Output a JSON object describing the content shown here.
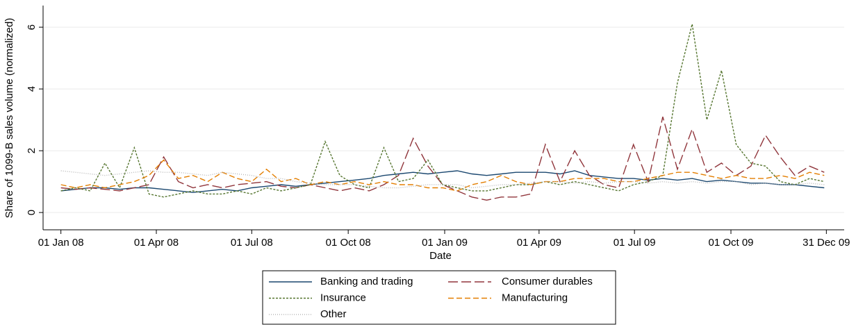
{
  "chart_data": {
    "type": "line",
    "x_label": "Date",
    "y_label": "Share of 1099-B sales volume (normalized)",
    "x": [
      "2008-01-01",
      "2008-01-15",
      "2008-01-29",
      "2008-02-12",
      "2008-02-26",
      "2008-03-11",
      "2008-03-25",
      "2008-04-08",
      "2008-04-22",
      "2008-05-06",
      "2008-05-20",
      "2008-06-03",
      "2008-06-17",
      "2008-07-01",
      "2008-07-15",
      "2008-07-29",
      "2008-08-12",
      "2008-08-26",
      "2008-09-09",
      "2008-09-23",
      "2008-10-07",
      "2008-10-21",
      "2008-11-04",
      "2008-11-18",
      "2008-12-02",
      "2008-12-16",
      "2008-12-30",
      "2009-01-13",
      "2009-01-27",
      "2009-02-10",
      "2009-02-24",
      "2009-03-10",
      "2009-03-24",
      "2009-04-07",
      "2009-04-21",
      "2009-05-05",
      "2009-05-19",
      "2009-06-02",
      "2009-06-16",
      "2009-06-30",
      "2009-07-14",
      "2009-07-28",
      "2009-08-11",
      "2009-08-25",
      "2009-09-08",
      "2009-09-22",
      "2009-10-06",
      "2009-10-20",
      "2009-11-03",
      "2009-11-17",
      "2009-12-01",
      "2009-12-15",
      "2009-12-29"
    ],
    "series": [
      {
        "name": "Banking and trading",
        "color": "#1a476f",
        "dash": "solid",
        "values": [
          0.7,
          0.75,
          0.8,
          0.8,
          0.75,
          0.8,
          0.8,
          0.75,
          0.7,
          0.65,
          0.7,
          0.75,
          0.7,
          0.8,
          0.85,
          0.9,
          0.85,
          0.9,
          0.95,
          1.0,
          1.05,
          1.1,
          1.2,
          1.25,
          1.3,
          1.25,
          1.3,
          1.35,
          1.25,
          1.2,
          1.25,
          1.3,
          1.3,
          1.3,
          1.25,
          1.35,
          1.2,
          1.15,
          1.1,
          1.1,
          1.05,
          1.1,
          1.05,
          1.1,
          1.0,
          1.05,
          1.0,
          0.95,
          0.95,
          0.9,
          0.9,
          0.85,
          0.8
        ]
      },
      {
        "name": "Consumer durables",
        "color": "#90353b",
        "dash": "long",
        "values": [
          0.8,
          0.75,
          0.8,
          0.75,
          0.7,
          0.8,
          0.9,
          1.8,
          1.0,
          0.8,
          0.9,
          0.8,
          0.9,
          0.95,
          1.0,
          0.85,
          0.8,
          0.9,
          0.8,
          0.7,
          0.8,
          0.7,
          0.9,
          1.2,
          2.4,
          1.5,
          0.9,
          0.7,
          0.5,
          0.4,
          0.5,
          0.5,
          0.6,
          2.2,
          1.0,
          2.0,
          1.2,
          0.9,
          0.8,
          2.2,
          1.0,
          3.1,
          1.4,
          2.7,
          1.3,
          1.6,
          1.2,
          1.5,
          2.5,
          1.8,
          1.2,
          1.5,
          1.3
        ]
      },
      {
        "name": "Insurance",
        "color": "#55752f",
        "dash": "short",
        "values": [
          0.7,
          0.8,
          0.7,
          1.6,
          0.8,
          2.1,
          0.6,
          0.5,
          0.6,
          0.7,
          0.6,
          0.6,
          0.7,
          0.6,
          0.8,
          0.7,
          0.8,
          0.9,
          2.3,
          1.2,
          0.9,
          0.8,
          2.1,
          1.0,
          1.1,
          1.7,
          0.9,
          0.8,
          0.7,
          0.7,
          0.8,
          0.9,
          0.9,
          1.0,
          0.9,
          1.0,
          0.9,
          0.8,
          0.7,
          0.9,
          1.0,
          1.2,
          4.2,
          6.1,
          3.0,
          4.6,
          2.2,
          1.6,
          1.5,
          1.0,
          0.9,
          1.1,
          1.0
        ]
      },
      {
        "name": "Manufacturing",
        "color": "#e37e00",
        "dash": "medium",
        "values": [
          0.9,
          0.8,
          0.9,
          0.8,
          0.9,
          1.0,
          1.2,
          1.7,
          1.1,
          1.2,
          1.0,
          1.3,
          1.1,
          1.0,
          1.4,
          1.0,
          1.1,
          0.9,
          1.0,
          0.9,
          1.0,
          0.9,
          1.0,
          0.9,
          0.9,
          0.8,
          0.8,
          0.7,
          0.9,
          1.0,
          1.2,
          1.0,
          0.9,
          1.0,
          1.0,
          1.1,
          1.1,
          1.1,
          1.0,
          1.0,
          1.1,
          1.2,
          1.3,
          1.3,
          1.2,
          1.1,
          1.2,
          1.1,
          1.1,
          1.2,
          1.1,
          1.3,
          1.2
        ]
      },
      {
        "name": "Other",
        "color": "#b8b8b8",
        "dash": "dotted",
        "values": [
          1.35,
          1.3,
          1.25,
          1.2,
          1.25,
          1.3,
          1.35,
          1.3,
          1.3,
          1.25,
          1.2,
          1.3,
          1.25,
          1.2,
          1.1,
          1.1,
          1.0,
          0.95,
          0.9,
          0.9,
          0.9,
          0.85,
          0.8,
          0.8,
          0.85,
          0.9,
          0.9,
          0.9,
          0.8,
          0.85,
          0.9,
          0.9,
          0.95,
          1.0,
          1.0,
          0.95,
          1.0,
          0.95,
          1.0,
          1.0,
          0.95,
          1.0,
          0.95,
          1.0,
          0.95,
          1.0,
          1.0,
          0.9,
          0.95,
          0.9,
          0.9,
          0.95,
          0.9
        ]
      }
    ],
    "xlim": [
      "2007-12-15",
      "2010-01-17"
    ],
    "xticks": [
      {
        "value": "2008-01-01",
        "label": "01 Jan 08"
      },
      {
        "value": "2008-04-01",
        "label": "01 Apr 08"
      },
      {
        "value": "2008-07-01",
        "label": "01 Jul 08"
      },
      {
        "value": "2008-10-01",
        "label": "01 Oct 08"
      },
      {
        "value": "2009-01-01",
        "label": "01 Jan 09"
      },
      {
        "value": "2009-04-01",
        "label": "01 Apr 09"
      },
      {
        "value": "2009-07-01",
        "label": "01 Jul 09"
      },
      {
        "value": "2009-10-01",
        "label": "01 Oct 09"
      },
      {
        "value": "2009-12-31",
        "label": "31 Dec 09"
      }
    ],
    "ylim": [
      -0.56,
      6.7
    ],
    "yticks": [
      0,
      2,
      4,
      6
    ],
    "grid": true,
    "legend": "bottom"
  }
}
